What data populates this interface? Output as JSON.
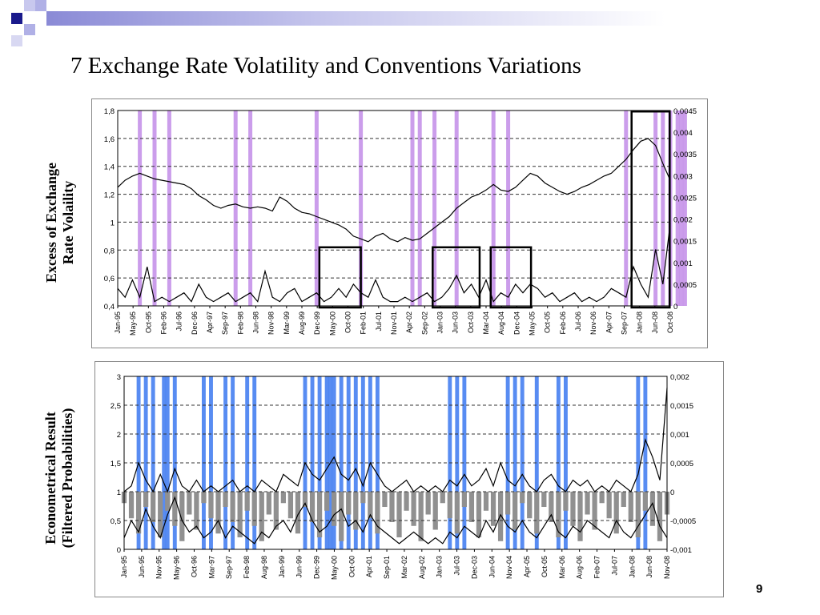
{
  "slide": {
    "title": "7 Exchange Rate Volatility and Conventions Variations",
    "page_number": "9",
    "colors": {
      "deco_dark": "#1a1a8c",
      "deco_mid": "#8a8ad6",
      "deco_light": "#c8c8ee"
    }
  },
  "labels": {
    "top_line1": "Excess of Exchange",
    "top_line2": "Rate Volaility",
    "bottom_line1": "Econometrical Result",
    "bottom_line2": "(Filtered Probabilities)"
  },
  "chart_data": [
    {
      "type": "line",
      "ylim_left": [
        0.4,
        1.8
      ],
      "yticks_left": [
        "1,8",
        "1,6",
        "1,4",
        "1,2",
        "1",
        "0,8",
        "0,6",
        "0,4"
      ],
      "ylim_right": [
        0,
        0.0045
      ],
      "yticks_right": [
        "0,0045",
        "0,004",
        "0,0035",
        "0,003",
        "0,0025",
        "0,002",
        "0,0015",
        "0,001",
        "0,0005",
        "0"
      ],
      "xticks": [
        "Jan-95",
        "May-95",
        "Oct-95",
        "Feb-96",
        "Jul-96",
        "Dec-96",
        "Apr-97",
        "Sep-97",
        "Feb-98",
        "Jun-98",
        "Nov-98",
        "Mar-99",
        "Aug-99",
        "Dec-99",
        "May-00",
        "Oct-00",
        "Feb-01",
        "Jul-01",
        "Nov-01",
        "Apr-02",
        "Sep-02",
        "Jan-03",
        "Jun-03",
        "Oct-03",
        "Mar-04",
        "Aug-04",
        "Dec-04",
        "May-05",
        "Oct-05",
        "Feb-06",
        "Jul-06",
        "Nov-06",
        "Apr-07",
        "Sep-07",
        "Jan-08",
        "Jun-08",
        "Oct-08"
      ],
      "grid": true,
      "series": [
        {
          "axis": "left",
          "color": "#000000",
          "values": [
            1.25,
            1.3,
            1.33,
            1.35,
            1.33,
            1.31,
            1.3,
            1.29,
            1.28,
            1.27,
            1.24,
            1.19,
            1.16,
            1.12,
            1.1,
            1.12,
            1.13,
            1.11,
            1.1,
            1.11,
            1.1,
            1.08,
            1.18,
            1.15,
            1.1,
            1.07,
            1.06,
            1.04,
            1.02,
            1.0,
            0.98,
            0.95,
            0.9,
            0.88,
            0.86,
            0.9,
            0.92,
            0.88,
            0.86,
            0.89,
            0.87,
            0.88,
            0.92,
            0.96,
            1.0,
            1.04,
            1.1,
            1.14,
            1.18,
            1.2,
            1.23,
            1.27,
            1.23,
            1.22,
            1.25,
            1.3,
            1.35,
            1.33,
            1.28,
            1.25,
            1.22,
            1.2,
            1.22,
            1.25,
            1.27,
            1.3,
            1.33,
            1.35,
            1.4,
            1.45,
            1.52,
            1.58,
            1.6,
            1.55,
            1.42,
            1.3
          ]
        },
        {
          "axis": "right",
          "color": "#000000",
          "values": [
            0.0004,
            0.0002,
            0.0006,
            0.0002,
            0.0009,
            0.0001,
            0.0002,
            0.0001,
            0.0002,
            0.0003,
            0.0001,
            0.0005,
            0.0002,
            0.0001,
            0.0002,
            0.0003,
            0.0001,
            0.0002,
            0.0003,
            0.0001,
            0.0008,
            0.0002,
            0.0001,
            0.0003,
            0.0004,
            0.0001,
            0.0002,
            0.0003,
            0.0001,
            0.0002,
            0.0004,
            0.0002,
            0.0005,
            0.0003,
            0.0002,
            0.0006,
            0.0002,
            0.0001,
            0.0001,
            0.0002,
            0.0001,
            0.0002,
            0.0003,
            0.0001,
            0.0002,
            0.0004,
            0.0007,
            0.0003,
            0.0005,
            0.0002,
            0.0006,
            0.0001,
            0.0003,
            0.0002,
            0.0005,
            0.0003,
            0.0005,
            0.0004,
            0.0002,
            0.0003,
            0.0001,
            0.0002,
            0.0003,
            0.0001,
            0.0002,
            0.0001,
            0.0002,
            0.0004,
            0.0003,
            0.0002,
            0.0009,
            0.0005,
            0.0002,
            0.0013,
            0.0005,
            0.0019
          ]
        }
      ],
      "bands_color": "#c28ce8",
      "bands": [
        3,
        5,
        7,
        16,
        18,
        27,
        33,
        40,
        41,
        43,
        46,
        51,
        53,
        69,
        73,
        74,
        75,
        76,
        76.5,
        77
      ]
    },
    {
      "type": "line",
      "ylim_left": [
        0,
        3
      ],
      "yticks_left": [
        "3",
        "2,5",
        "2",
        "1,5",
        "1",
        "0,5",
        "0"
      ],
      "ylim_right": [
        -0.001,
        0.002
      ],
      "yticks_right": [
        "0,002",
        "0,0015",
        "0,001",
        "0,0005",
        "0",
        "-0,0005",
        "-0,001"
      ],
      "xticks": [
        "Jan-95",
        "Jun-95",
        "Nov-95",
        "May-96",
        "Oct-96",
        "Mar-97",
        "Sep-97",
        "Feb-98",
        "Aug-98",
        "Jan-99",
        "Jun-99",
        "Dec-99",
        "May-00",
        "Oct-00",
        "Apr-01",
        "Sep-01",
        "Mar-02",
        "Aug-02",
        "Jan-03",
        "Jul-03",
        "Dec-03",
        "Jun-04",
        "Nov-04",
        "Apr-05",
        "Oct-05",
        "Mar-06",
        "Aug-06",
        "Feb-07",
        "Jul-07",
        "Jan-08",
        "Jun-08",
        "Nov-08"
      ],
      "grid": true,
      "series": [
        {
          "axis": "left",
          "color": "#000000",
          "values": [
            0.2,
            0.5,
            0.3,
            0.7,
            0.4,
            0.2,
            0.6,
            0.9,
            0.5,
            0.3,
            0.4,
            0.2,
            0.3,
            0.5,
            0.2,
            0.4,
            0.3,
            0.2,
            0.1,
            0.3,
            0.2,
            0.4,
            0.5,
            0.3,
            0.6,
            0.8,
            0.5,
            0.3,
            0.4,
            0.6,
            0.7,
            0.4,
            0.5,
            0.3,
            0.6,
            0.4,
            0.3,
            0.2,
            0.1,
            0.2,
            0.3,
            0.2,
            0.1,
            0.2,
            0.1,
            0.3,
            0.2,
            0.4,
            0.3,
            0.2,
            0.5,
            0.3,
            0.6,
            0.4,
            0.3,
            0.5,
            0.3,
            0.2,
            0.4,
            0.6,
            0.3,
            0.2,
            0.4,
            0.3,
            0.5,
            0.4,
            0.3,
            0.2,
            0.5,
            0.3,
            0.2,
            0.4,
            0.6,
            0.8,
            0.4,
            0.2
          ]
        },
        {
          "axis": "right",
          "color": "#000000",
          "values": [
            0.0,
            0.0001,
            0.0005,
            0.0002,
            0.0,
            0.0003,
            0.0,
            0.0004,
            0.0001,
            0.0,
            0.0002,
            0.0,
            0.0001,
            0.0,
            0.0001,
            0.0002,
            0.0,
            0.0001,
            0.0,
            0.0002,
            0.0001,
            0.0,
            0.0003,
            0.0002,
            0.0001,
            0.0005,
            0.0003,
            0.0002,
            0.0004,
            0.0006,
            0.0003,
            0.0002,
            0.0004,
            0.0001,
            0.0005,
            0.0003,
            0.0001,
            0.0,
            0.0001,
            0.0002,
            0.0,
            0.0001,
            0.0,
            0.0001,
            0.0,
            0.0002,
            0.0001,
            0.0003,
            0.0001,
            0.0002,
            0.0004,
            0.0001,
            0.0005,
            0.0002,
            0.0001,
            0.0003,
            0.0001,
            0.0,
            0.0002,
            0.0003,
            0.0001,
            0.0,
            0.0002,
            0.0001,
            0.0002,
            0.0,
            0.0001,
            0.0,
            0.0002,
            0.0001,
            0.0,
            0.0003,
            0.0009,
            0.0006,
            0.0002,
            0.0018
          ]
        }
      ],
      "bars_color": "#909090",
      "bands_color": "#3b78f0",
      "bands": [
        2,
        3,
        4,
        5.5,
        6,
        7,
        11,
        12,
        14,
        15,
        17,
        18,
        25,
        26,
        27,
        28,
        28.5,
        29,
        30,
        31,
        32,
        33,
        34,
        35,
        45,
        46,
        47,
        53,
        54,
        55,
        57,
        60,
        61,
        71,
        72
      ]
    }
  ]
}
